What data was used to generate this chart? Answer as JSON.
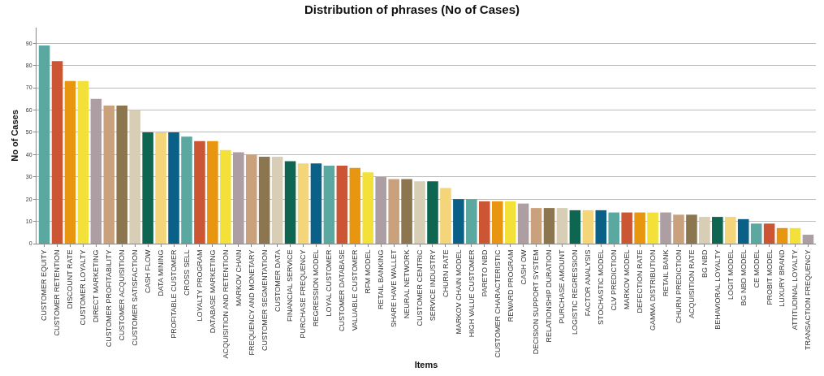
{
  "chart_data": {
    "type": "bar",
    "title": "Distribution of phrases (No of Cases)",
    "xlabel": "Items",
    "ylabel": "No of Cases",
    "categories": [
      "CUSTOMER EQUITY",
      "CUSTOMER RETENTION",
      "DISCOUNT RATE",
      "CUSTOMER LOYALTY",
      "DIRECT MARKETING",
      "CUSTOMER PROFITABILITY",
      "CUSTOMER ACQUISITION",
      "CUSTOMER SATISFACTION",
      "CASH FLOW",
      "DATA MINING",
      "PROFITABLE CUSTOMER",
      "CROSS SELL",
      "LOYALTY PROGRAM",
      "DATABASE MARKETING",
      "ACQUISITION AND RETENTION",
      "MARKOV CHAIN",
      "FREQUENCY AND MONETARY",
      "CUSTOMER SEGMENTATION",
      "CUSTOMER DATA",
      "FINANCIAL SERVICE",
      "PURCHASE FREQUENCY",
      "REGRESSION MODEL",
      "LOYAL CUSTOMER",
      "CUSTOMER DATABASE",
      "VALUABLE CUSTOMER",
      "RFM MODEL",
      "RETAIL BANKING",
      "SHARE HAVE WALLET",
      "NEURAL NETWORK",
      "CUSTOMER CENTRIC",
      "SERVICE INDUSTRY",
      "CHURN RATE",
      "MARKOV CHAIN MODEL",
      "HIGH VALUE CUSTOMER",
      "PARETO NBD",
      "CUSTOMER CHARACTERISTIC",
      "REWARD PROGRAM",
      "CASH OW",
      "DECISION SUPPORT SYSTEM",
      "RELATIONSHIP DURATION",
      "PURCHASE AMOUNT",
      "LOGISTIC REGRESSION",
      "FACTOR ANALYSIS",
      "STOCHASTIC MODEL",
      "CLV PREDICTION",
      "MARKOV MODEL",
      "DEFECTION RATE",
      "GAMMA DISTRIBUTION",
      "RETAIL BANK",
      "CHURN PREDICTION",
      "ACQUISITION RATE",
      "BG NBD",
      "BEHAVIORAL LOYALTY",
      "LOGIT MODEL",
      "BG NBD MODEL",
      "CE MODEL",
      "PROBIT MODEL",
      "LUXURY BRAND",
      "ATTITUDINAL LOYALTY",
      "TRANSACTION FREQUENCY"
    ],
    "values": [
      89,
      82,
      73,
      73,
      65,
      62,
      62,
      60,
      50,
      50,
      50,
      48,
      46,
      46,
      42,
      41,
      40,
      39,
      39,
      37,
      36,
      36,
      35,
      35,
      34,
      32,
      30,
      29,
      29,
      28,
      28,
      25,
      20,
      20,
      19,
      19,
      19,
      18,
      16,
      16,
      16,
      15,
      15,
      15,
      14,
      14,
      14,
      14,
      14,
      13,
      13,
      12,
      12,
      12,
      11,
      9,
      9,
      7,
      7,
      4
    ],
    "colors": [
      "#5ba8a0",
      "#cc5533",
      "#e8960f",
      "#f3e13a",
      "#ac9ea3",
      "#c9a27d",
      "#8b7650",
      "#d8cdb5",
      "#0f6650",
      "#f5d57a",
      "#0b6087",
      "#5ba8a0",
      "#cc5533",
      "#e8960f",
      "#f3e13a",
      "#ac9ea3",
      "#c9a27d",
      "#8b7650",
      "#d8cdb5",
      "#0f6650",
      "#f5d57a",
      "#0b6087",
      "#5ba8a0",
      "#cc5533",
      "#e8960f",
      "#f3e13a",
      "#ac9ea3",
      "#c9a27d",
      "#8b7650",
      "#d8cdb5",
      "#0f6650",
      "#f5d57a",
      "#0b6087",
      "#5ba8a0",
      "#cc5533",
      "#e8960f",
      "#f3e13a",
      "#ac9ea3",
      "#c9a27d",
      "#8b7650",
      "#d8cdb5",
      "#0f6650",
      "#f5d57a",
      "#0b6087",
      "#5ba8a0",
      "#cc5533",
      "#e8960f",
      "#f3e13a",
      "#ac9ea3",
      "#c9a27d",
      "#8b7650",
      "#d8cdb5",
      "#0f6650",
      "#f5d57a",
      "#0b6087",
      "#5ba8a0",
      "#cc5533",
      "#e8960f",
      "#f3e13a",
      "#ac9ea3"
    ],
    "ylim": [
      0,
      97
    ],
    "yticks": [
      0,
      10,
      20,
      30,
      40,
      50,
      60,
      70,
      80,
      90
    ],
    "grid": "y"
  }
}
